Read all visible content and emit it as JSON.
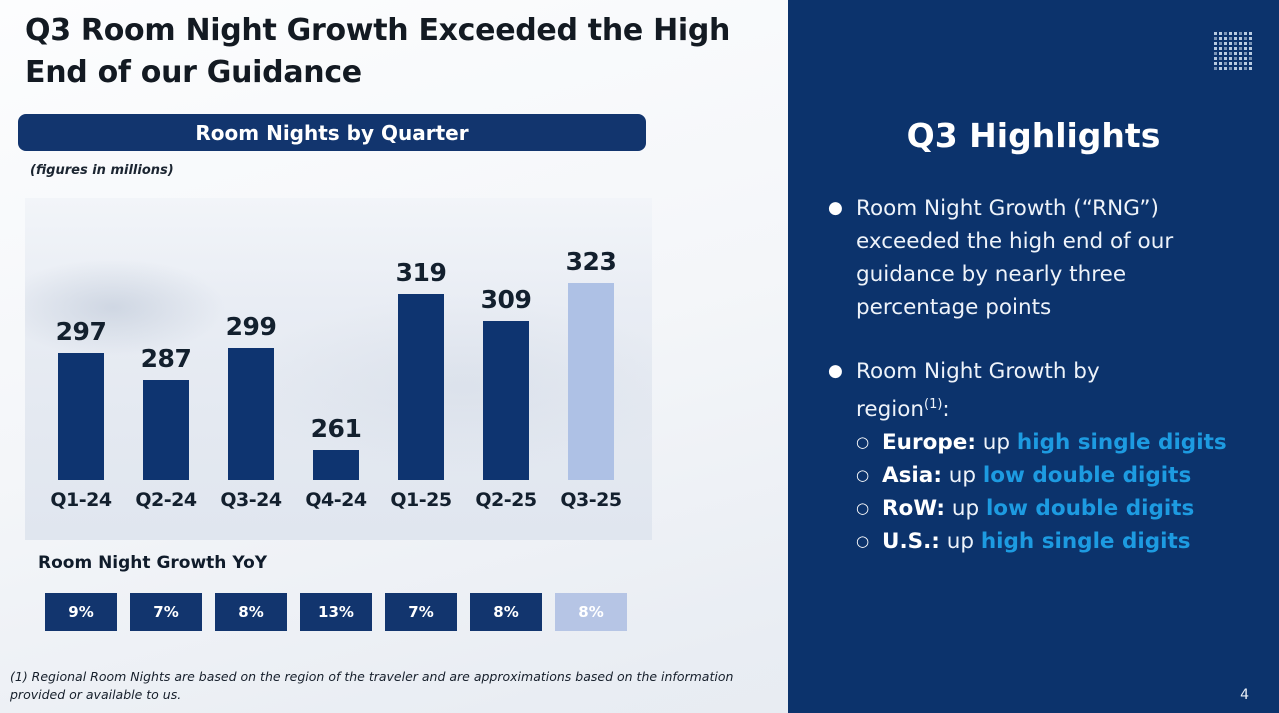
{
  "slide": {
    "title": "Q3 Room Night Growth Exceeded the High End of our Guidance",
    "page_number": "4",
    "footnote": "(1) Regional Room Nights are based on the region of the traveler and are approximations based on the information provided or available to us."
  },
  "chart": {
    "banner": "Room Nights by Quarter",
    "units_note": "(figures in millions)",
    "yoy_title": "Room Night Growth YoY"
  },
  "chart_data": {
    "type": "bar",
    "title": "Room Nights by Quarter",
    "units": "figures in millions",
    "categories": [
      "Q1-24",
      "Q2-24",
      "Q3-24",
      "Q4-24",
      "Q1-25",
      "Q2-25",
      "Q3-25"
    ],
    "values": [
      297,
      287,
      299,
      261,
      319,
      309,
      323
    ],
    "growth_yoy": [
      "9%",
      "7%",
      "8%",
      "13%",
      "7%",
      "8%",
      "8%"
    ],
    "highlight_index": 6,
    "ylim": [
      250,
      330
    ],
    "bar_color": "#0e3470",
    "highlight_bar_color": "#aec1e5",
    "grid": false,
    "legend": false
  },
  "highlights": {
    "title": "Q3 Highlights",
    "bullet1": "Room Night Growth (“RNG”) exceeded the high end of our guidance by nearly three percentage points",
    "bullet2_line1": "Room Night Growth by",
    "bullet2_line2_word": "region",
    "bullet2_sup": "(1)",
    "bullet2_colon": ":",
    "regions": [
      {
        "label": "Europe:",
        "mid": " up ",
        "value": "high single digits"
      },
      {
        "label": "Asia:",
        "mid": " up ",
        "value": "low double digits"
      },
      {
        "label": "RoW:",
        "mid": " up ",
        "value": "low double digits"
      },
      {
        "label": "U.S.:",
        "mid": " up ",
        "value": "high single digits"
      }
    ],
    "accent_color": "#1d9be1"
  },
  "icons": {
    "top_right": "dots-grid-icon"
  },
  "colors": {
    "panel_navy": "#0c336c",
    "banner_navy": "#12356e",
    "bar_navy": "#0e3470",
    "bar_light": "#aec1e5",
    "accent_azure": "#1d9be1"
  }
}
